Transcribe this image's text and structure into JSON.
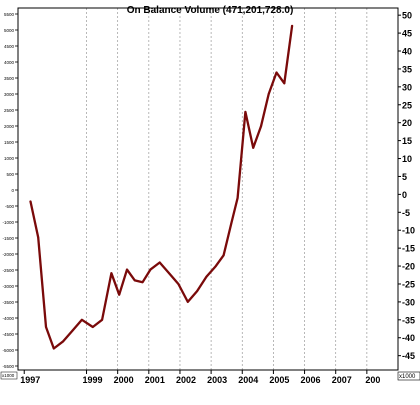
{
  "chart_data": {
    "type": "line",
    "title": "On Balance Volume (471,201,728.0)",
    "xlabel": "",
    "ylabel": "",
    "x": [
      1997.2,
      1997.45,
      1997.7,
      1997.95,
      1998.25,
      1998.55,
      1998.85,
      1999.2,
      1999.5,
      1999.8,
      2000.05,
      2000.3,
      2000.55,
      2000.8,
      2001.05,
      2001.35,
      2001.65,
      2001.95,
      2002.25,
      2002.55,
      2002.85,
      2003.15,
      2003.4,
      2003.65,
      2003.85,
      2004.1,
      2004.35,
      2004.6,
      2004.85,
      2005.1,
      2005.35,
      2005.6
    ],
    "series": [
      {
        "values": [
          -2,
          -12,
          -37,
          -43,
          -41,
          -38,
          -35,
          -37,
          -35,
          -22,
          -28,
          -21,
          -24,
          -24.5,
          -21,
          -19,
          -22,
          -25,
          -30,
          -27,
          -23,
          -20,
          -17,
          -8,
          -1,
          23,
          13,
          19,
          28,
          34,
          31,
          47
        ],
        "color": "#7a0a0a"
      }
    ],
    "xlim": [
      1996.8,
      2009.0
    ],
    "ylim": [
      -49,
      52
    ],
    "x_ticks": [
      "1997",
      "1999",
      "2000",
      "2001",
      "2002",
      "2003",
      "2004",
      "2005",
      "2006",
      "2007",
      "200"
    ],
    "y_ticks_right": [
      50,
      45,
      40,
      35,
      30,
      25,
      20,
      15,
      10,
      5,
      0,
      -5,
      -10,
      -15,
      -20,
      -25,
      -30,
      -35,
      -40,
      -45
    ],
    "y_ticks_left": [
      "5500",
      "5000",
      "4500",
      "4000",
      "3500",
      "3000",
      "2500",
      "2000",
      "1500",
      "1000",
      "500",
      "0",
      "-500",
      "-1000",
      "-1500",
      "-2000",
      "-2500",
      "-3000",
      "-3500",
      "-4000",
      "-4500",
      "-5000",
      "-5500"
    ],
    "unit_right": "x1000",
    "unit_left": "x1000",
    "grid": true,
    "grid_style": "dashed-vertical"
  }
}
